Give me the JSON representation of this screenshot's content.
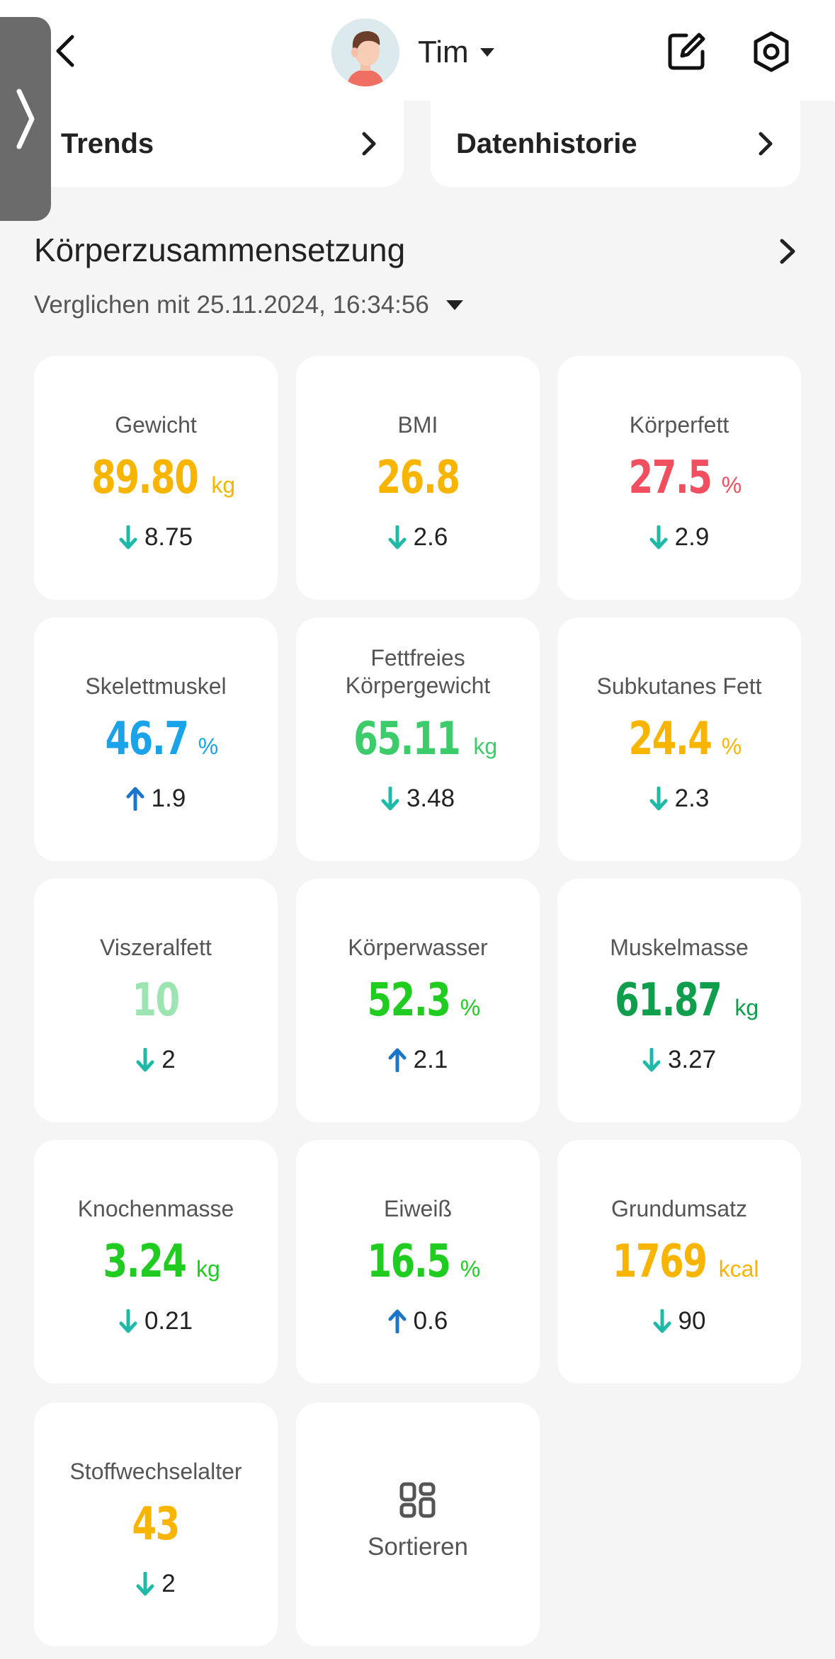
{
  "header": {
    "user_name": "Tim",
    "icons": {
      "back": "chevron-left-icon",
      "dropdown": "caret-down-icon",
      "edit": "edit-icon",
      "settings": "settings-icon"
    }
  },
  "nav_cards": [
    {
      "label": "Trends"
    },
    {
      "label": "Datenhistorie"
    }
  ],
  "section": {
    "title": "Körperzusammensetzung",
    "compare_text": "Verglichen mit 25.11.2024, 16:34:56"
  },
  "colors": {
    "orange": "#f7b500",
    "red": "#ef4f5f",
    "blue": "#1aa3e8",
    "green": "#3dcc6b",
    "light_green": "#9ce5b2",
    "bright_green": "#20cc20",
    "dark_green": "#0f9e4c",
    "down_arrow": "#1fb9a8",
    "up_arrow": "#1b75c9"
  },
  "metrics": [
    {
      "label": "Gewicht",
      "value": "89.80",
      "unit": "kg",
      "color": "#f7b500",
      "direction": "down",
      "delta": "8.75"
    },
    {
      "label": "BMI",
      "value": "26.8",
      "unit": "",
      "color": "#f7b500",
      "direction": "down",
      "delta": "2.6"
    },
    {
      "label": "Körperfett",
      "value": "27.5",
      "unit": "%",
      "color": "#ef4f5f",
      "direction": "down",
      "delta": "2.9"
    },
    {
      "label": "Skelettmuskel",
      "value": "46.7",
      "unit": "%",
      "color": "#1aa3e8",
      "direction": "up",
      "delta": "1.9"
    },
    {
      "label": "Fettfreies\nKörpergewicht",
      "value": "65.11",
      "unit": "kg",
      "color": "#3dcc6b",
      "direction": "down",
      "delta": "3.48"
    },
    {
      "label": "Subkutanes Fett",
      "value": "24.4",
      "unit": "%",
      "color": "#f7b500",
      "direction": "down",
      "delta": "2.3"
    },
    {
      "label": "Viszeralfett",
      "value": "10",
      "unit": "",
      "color": "#9ce5b2",
      "direction": "down",
      "delta": "2"
    },
    {
      "label": "Körperwasser",
      "value": "52.3",
      "unit": "%",
      "color": "#20cc20",
      "direction": "up",
      "delta": "2.1"
    },
    {
      "label": "Muskelmasse",
      "value": "61.87",
      "unit": "kg",
      "color": "#0f9e4c",
      "direction": "down",
      "delta": "3.27"
    },
    {
      "label": "Knochenmasse",
      "value": "3.24",
      "unit": "kg",
      "color": "#20cc20",
      "direction": "down",
      "delta": "0.21"
    },
    {
      "label": "Eiweiß",
      "value": "16.5",
      "unit": "%",
      "color": "#20cc20",
      "direction": "up",
      "delta": "0.6"
    },
    {
      "label": "Grundumsatz",
      "value": "1769",
      "unit": "kcal",
      "color": "#f7b500",
      "direction": "down",
      "delta": "90"
    },
    {
      "label": "Stoffwechselalter",
      "value": "43",
      "unit": "",
      "color": "#f7b500",
      "direction": "down",
      "delta": "2"
    }
  ],
  "sort_card": {
    "label": "Sortieren",
    "icon": "sort-layout-icon"
  }
}
